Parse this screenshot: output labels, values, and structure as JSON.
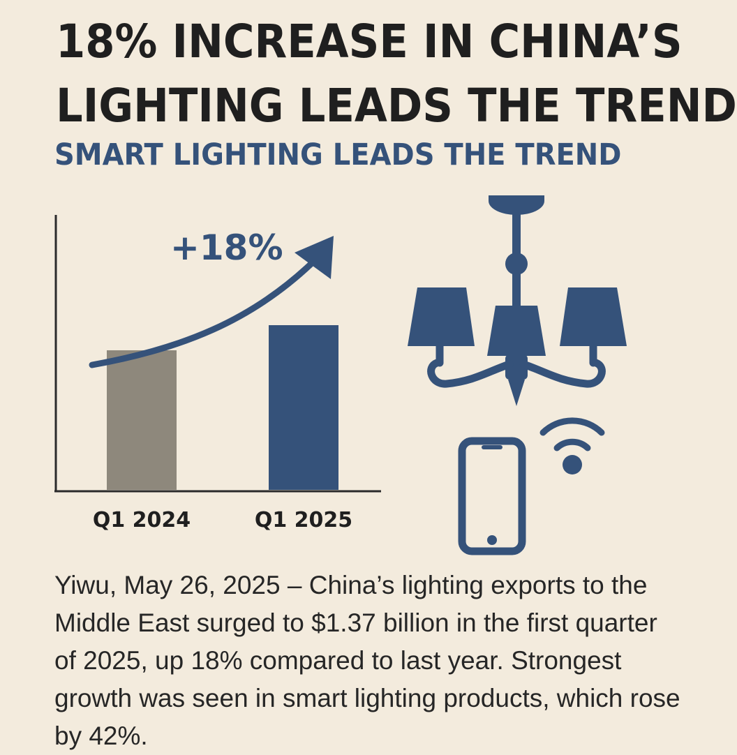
{
  "headline": {
    "line1": "18% INCREASE IN CHINA’S",
    "line2": "LIGHTING LEADS THE TREND"
  },
  "subheadline": "SMART LIGHTING LEADS THE TREND",
  "chart_data": {
    "type": "bar",
    "categories": [
      "Q1 2024",
      "Q1 2025"
    ],
    "values": [
      100,
      118
    ],
    "ylim": [
      0,
      150
    ],
    "annotation": "+18%",
    "colors": [
      "#8e887c",
      "#35527a"
    ],
    "title": "",
    "xlabel": "",
    "ylabel": ""
  },
  "body_text": "Yiwu, May 26, 2025 – China’s lighting exports to the Middle East surged to $1.37 billion in the first quarter of 2025, up 18% compared to last year. Strongest growth was seen in smart lighting products, which rose by 42%.",
  "icons": {
    "chandelier": "chandelier-icon",
    "phone": "smartphone-icon",
    "wifi": "wifi-icon"
  },
  "colors": {
    "background": "#f3ebdd",
    "accent": "#35527a",
    "text": "#1f1f1f"
  }
}
